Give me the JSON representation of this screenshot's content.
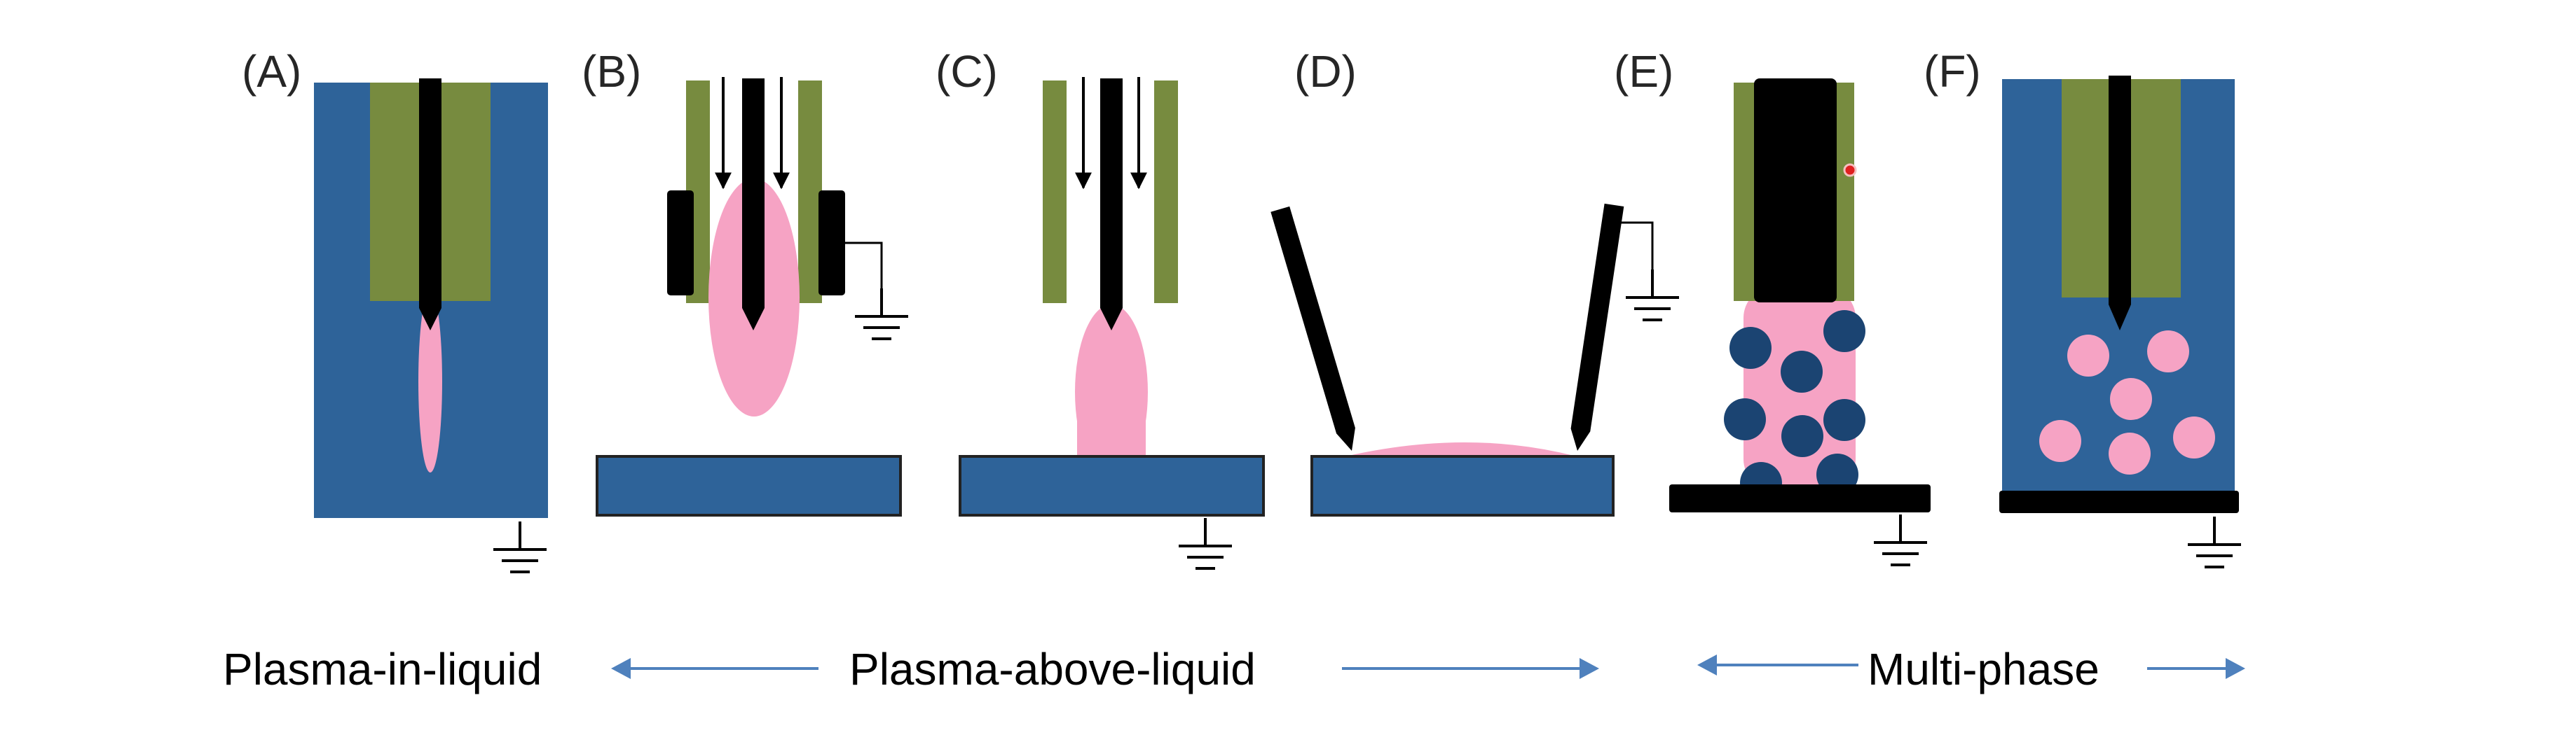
{
  "panels": {
    "a": {
      "label": "(A)"
    },
    "b": {
      "label": "(B)"
    },
    "c": {
      "label": "(C)"
    },
    "d": {
      "label": "(D)"
    },
    "e": {
      "label": "(E)"
    },
    "f": {
      "label": "(F)"
    }
  },
  "categories": {
    "in_liquid": "Plasma-in-liquid",
    "above_liquid": "Plasma-above-liquid",
    "multi_phase": "Multi-phase"
  },
  "colors": {
    "liquid": "#2e6399",
    "dielectric": "#778b3f",
    "electrode": "#000000",
    "plasma": "#f6a3c4",
    "bubble_dark": "#1b4472",
    "arrow": "#4f81bd"
  },
  "icons": {
    "ground": "ground-symbol-icon",
    "gas_flow": "arrow-down-icon"
  }
}
